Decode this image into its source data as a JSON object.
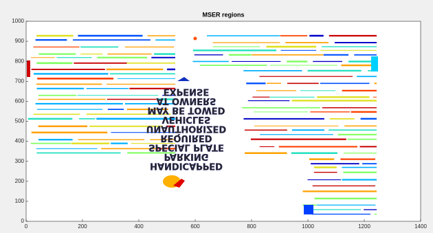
{
  "chart_data": {
    "type": "image",
    "title": "MSER regions",
    "xlim": [
      0,
      1400
    ],
    "ylim": [
      0,
      1000
    ],
    "xticks": [
      0,
      200,
      400,
      600,
      800,
      1000,
      1200,
      1400
    ],
    "yticks": [
      0,
      100,
      200,
      300,
      400,
      500,
      600,
      700,
      800,
      900,
      1000
    ],
    "image_text": [
      "HANDICAPPED",
      "PARKING",
      "SPECIAL PLATE",
      "REQUIRED",
      "UNAUTHORIZED",
      "VEHICLES",
      "MAY BE TOWED",
      "AT OWNERS",
      "EXPENSE"
    ]
  }
}
